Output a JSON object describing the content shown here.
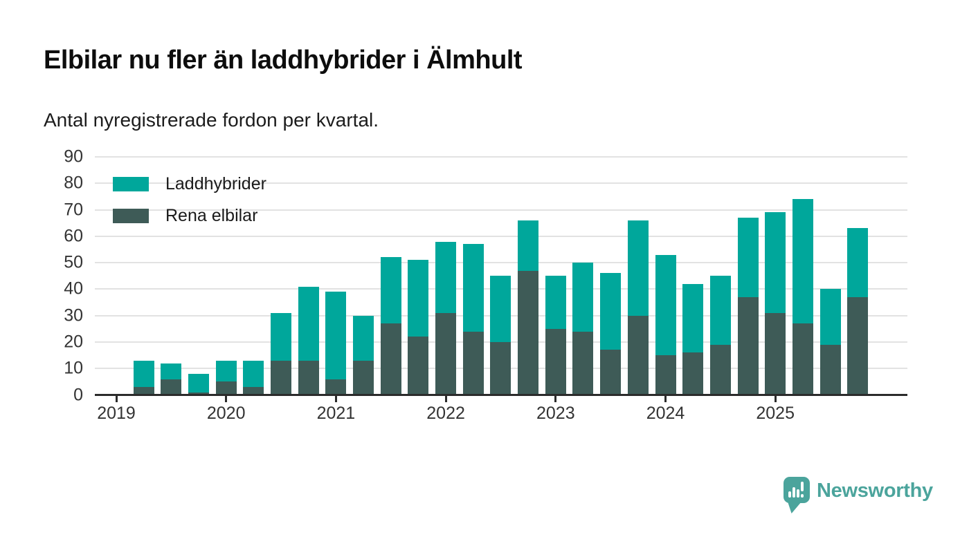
{
  "header": {
    "title": "Elbilar nu fler än laddhybrider i Älmhult",
    "subtitle": "Antal nyregistrerade fordon per kvartal."
  },
  "legend": {
    "items": [
      {
        "label": "Laddhybrider",
        "color": "#00a79b"
      },
      {
        "label": "Rena elbilar",
        "color": "#3e5b57"
      }
    ]
  },
  "chart_data": {
    "type": "bar",
    "stacked": true,
    "title": "Elbilar nu fler än laddhybrider i Älmhult",
    "subtitle": "Antal nyregistrerade fordon per kvartal.",
    "categories": [
      "2019 Q2",
      "2019 Q3",
      "2019 Q4",
      "2020 Q1",
      "2020 Q2",
      "2020 Q3",
      "2020 Q4",
      "2021 Q1",
      "2021 Q2",
      "2021 Q3",
      "2021 Q4",
      "2022 Q1",
      "2022 Q2",
      "2022 Q3",
      "2022 Q4",
      "2023 Q1",
      "2023 Q2",
      "2023 Q3",
      "2023 Q4",
      "2024 Q1",
      "2024 Q2",
      "2024 Q3",
      "2024 Q4",
      "2025 Q1",
      "2025 Q2",
      "2025 Q3",
      "2025 Q4"
    ],
    "x_offset_quarters": 1,
    "series": [
      {
        "name": "Rena elbilar",
        "color": "#3e5b57",
        "values": [
          3,
          6,
          1,
          5,
          3,
          13,
          13,
          6,
          13,
          27,
          22,
          31,
          24,
          20,
          47,
          25,
          24,
          17,
          30,
          15,
          16,
          19,
          37,
          31,
          27,
          19,
          37
        ]
      },
      {
        "name": "Laddhybrider",
        "color": "#00a79b",
        "values": [
          10,
          6,
          7,
          8,
          10,
          18,
          28,
          33,
          17,
          25,
          29,
          27,
          33,
          25,
          19,
          20,
          26,
          29,
          36,
          38,
          26,
          26,
          30,
          38,
          47,
          21,
          26
        ]
      }
    ],
    "stack_totals": [
      13,
      12,
      8,
      13,
      13,
      31,
      41,
      39,
      30,
      52,
      51,
      58,
      57,
      45,
      66,
      45,
      50,
      46,
      66,
      53,
      42,
      45,
      67,
      69,
      74,
      40,
      63
    ],
    "y_ticks": [
      0,
      10,
      20,
      30,
      40,
      50,
      60,
      70,
      80,
      90
    ],
    "ylim": [
      0,
      90
    ],
    "x_tick_labels": [
      "2019",
      "2020",
      "2021",
      "2022",
      "2023",
      "2024",
      "2025"
    ],
    "grid": "horizontal",
    "legend_position": "top-left-inside",
    "colors": {
      "gridline": "#e2e2e2",
      "axis": "#2b2b2b",
      "label": "#333333"
    }
  },
  "branding": {
    "logo_text": "Newsworthy",
    "logo_color": "#4ba49c"
  }
}
